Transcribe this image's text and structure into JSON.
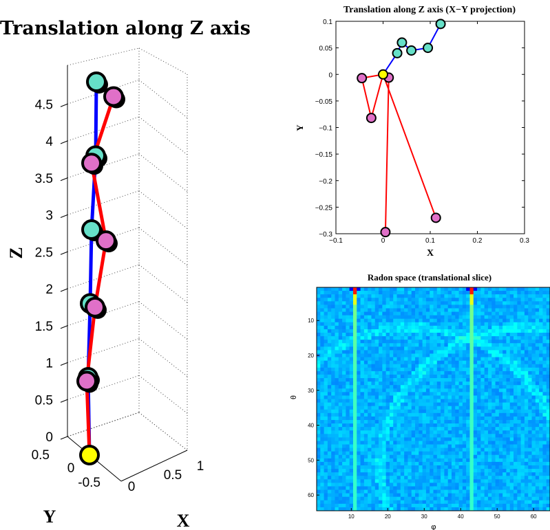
{
  "chart_data": [
    {
      "type": "line",
      "title": "Translation along Z axis",
      "xlabel": "X",
      "ylabel": "Y",
      "zlabel": "Z",
      "zlim": [
        0,
        4.9
      ],
      "z_ticks": [
        "0",
        "0.5",
        "1",
        "1.5",
        "2",
        "2.5",
        "3",
        "3.5",
        "4",
        "4.5"
      ],
      "x_ticks": [
        "-0.5",
        "0",
        "0.5",
        "1"
      ],
      "y_ticks": [
        "0.5",
        "0"
      ],
      "grid": true,
      "series": [
        {
          "color": "#0000ff",
          "z": [
            0,
            0.8,
            1.8,
            2.8,
            3.8,
            4.8
          ]
        },
        {
          "color": "#ff0000",
          "z": [
            0,
            0.75,
            1.75,
            2.65,
            3.7,
            4.6
          ]
        }
      ],
      "markers": {
        "cyan": "#66e0c8",
        "pink": "#e070c8",
        "yellow": "#ffff00"
      }
    },
    {
      "type": "line",
      "title": "Translation along Z axis (X−Y projection)",
      "xlabel": "X",
      "ylabel": "Y",
      "xlim": [
        -0.1,
        0.3
      ],
      "ylim": [
        -0.3,
        0.1
      ],
      "x_ticks": [
        "−0.1",
        "0",
        "0.1",
        "0.2",
        "0.3"
      ],
      "y_ticks": [
        "−0.3",
        "−0.25",
        "−0.2",
        "−0.15",
        "−0.1",
        "−0.05",
        "0",
        "0.05",
        "0.1"
      ],
      "series": [
        {
          "color": "#0000ff",
          "marker": "#66e0c8",
          "points": [
            [
              0.0,
              0.0
            ],
            [
              0.03,
              0.04
            ],
            [
              0.04,
              0.06
            ],
            [
              0.06,
              0.045
            ],
            [
              0.095,
              0.05
            ],
            [
              0.122,
              0.095
            ]
          ]
        },
        {
          "color": "#ff0000",
          "marker": "#e070c8",
          "points": [
            [
              0.0,
              0.0
            ],
            [
              -0.045,
              -0.007
            ],
            [
              -0.025,
              -0.082
            ],
            [
              0.0,
              0.0
            ],
            [
              0.112,
              -0.27
            ],
            [
              0.0,
              0.0
            ],
            [
              0.012,
              -0.006
            ],
            [
              0.005,
              -0.297
            ]
          ]
        }
      ],
      "origin_marker": "#ffff00"
    },
    {
      "type": "heatmap",
      "title": "Radon space (translational slice)",
      "xlabel": "φ",
      "ylabel": "θ",
      "xlim": [
        0.5,
        64.5
      ],
      "ylim": [
        0.5,
        64.5
      ],
      "x_ticks": [
        "10",
        "20",
        "30",
        "40",
        "50",
        "60"
      ],
      "y_ticks": [
        "10",
        "20",
        "30",
        "40",
        "50",
        "60"
      ],
      "colormap": "jet",
      "dominant_color": "#1f7fe8",
      "peak_columns": [
        11,
        43
      ]
    }
  ]
}
